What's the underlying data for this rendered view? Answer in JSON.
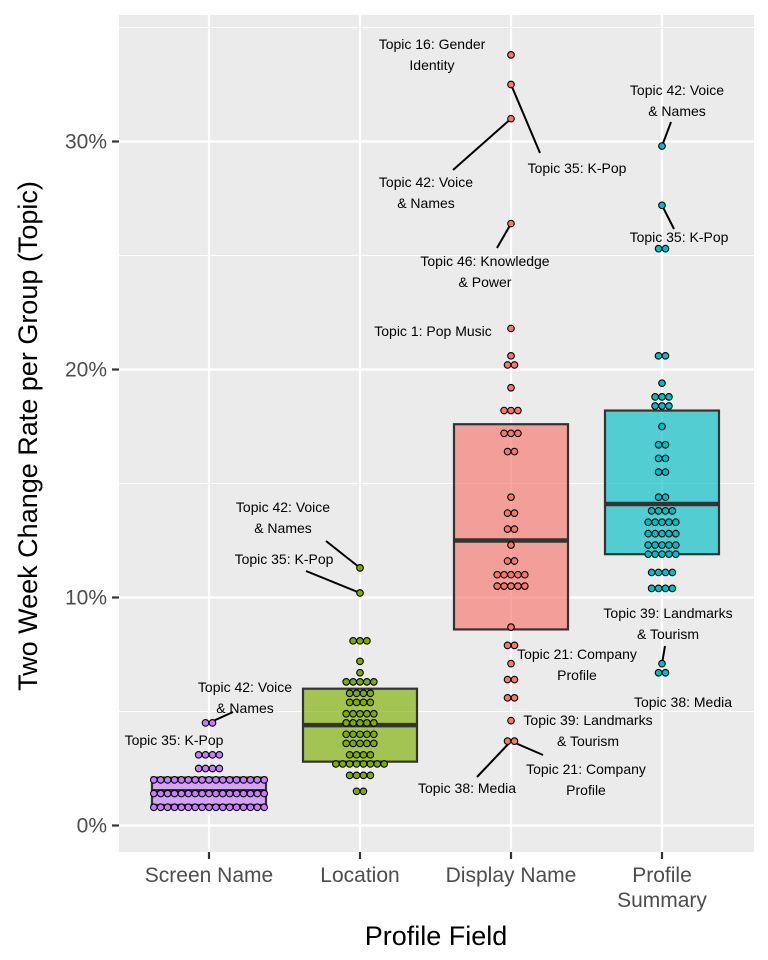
{
  "chart_data": {
    "type": "box",
    "title": "",
    "xlabel": "Profile Field",
    "ylabel": "Two Week Change Rate per Group (Topic)",
    "ylim": [
      -1,
      35.5
    ],
    "y_ticks": [
      0,
      10,
      20,
      30
    ],
    "y_tick_labels": [
      "0%",
      "10%",
      "20%",
      "30%"
    ],
    "grid": true,
    "legend": "none",
    "categories": [
      "Screen Name",
      "Location",
      "Display Name",
      "Profile Summary"
    ],
    "category_label_lines": [
      [
        "Screen Name"
      ],
      [
        "Location"
      ],
      [
        "Display Name"
      ],
      [
        "Profile",
        "Summary"
      ]
    ],
    "colors": [
      "#c77cff",
      "#7cae00",
      "#f8766d",
      "#00bfc4"
    ],
    "boxes": [
      {
        "q1": 0.9,
        "median": 1.5,
        "q3": 2.1
      },
      {
        "q1": 2.8,
        "median": 4.4,
        "q3": 6.0
      },
      {
        "q1": 8.6,
        "median": 12.5,
        "q3": 17.6
      },
      {
        "q1": 11.9,
        "median": 14.1,
        "q3": 18.2
      }
    ],
    "points": [
      [
        4.5,
        4.5,
        3.1,
        3.1,
        3.1,
        3.1,
        2.5,
        2.5,
        2.5,
        2.5,
        2.0,
        2.0,
        2.0,
        2.0,
        2.0,
        2.0,
        2.0,
        2.0,
        2.0,
        2.0,
        2.0,
        2.0,
        2.0,
        2.0,
        2.0,
        2.0,
        2.0,
        1.4,
        1.4,
        1.4,
        1.4,
        1.4,
        1.4,
        1.4,
        1.4,
        1.4,
        1.4,
        1.4,
        1.4,
        1.4,
        1.4,
        1.4,
        1.4,
        1.4,
        0.8,
        0.8,
        0.8,
        0.8,
        0.8,
        0.8,
        0.8,
        0.8,
        0.8,
        0.8,
        0.8,
        0.8,
        0.8,
        0.8,
        0.8,
        0.8,
        0.8
      ],
      [
        11.3,
        10.2,
        8.1,
        8.1,
        8.1,
        7.2,
        6.7,
        6.3,
        6.3,
        6.3,
        6.3,
        6.3,
        5.8,
        5.8,
        5.8,
        5.8,
        5.4,
        5.4,
        5.4,
        5.4,
        4.9,
        4.9,
        4.9,
        4.9,
        4.9,
        4.5,
        4.5,
        4.5,
        4.5,
        4.5,
        4.0,
        4.0,
        4.0,
        4.0,
        4.0,
        3.6,
        3.6,
        3.6,
        3.6,
        3.6,
        3.1,
        3.1,
        3.1,
        3.1,
        2.7,
        2.7,
        2.7,
        2.7,
        2.7,
        2.7,
        2.7,
        2.7,
        2.2,
        2.2,
        2.2,
        2.2,
        1.5,
        1.5
      ],
      [
        33.8,
        32.5,
        31.0,
        26.4,
        21.8,
        20.6,
        20.2,
        20.2,
        19.2,
        18.2,
        18.2,
        18.2,
        17.2,
        17.2,
        17.2,
        16.4,
        16.4,
        14.4,
        13.7,
        13.7,
        13.0,
        13.0,
        12.3,
        11.6,
        11.6,
        11.0,
        11.0,
        11.0,
        11.0,
        11.0,
        10.5,
        10.5,
        10.5,
        10.5,
        10.5,
        8.7,
        7.9,
        7.9,
        7.1,
        6.4,
        6.4,
        5.6,
        5.6,
        4.6,
        3.7,
        3.7
      ],
      [
        29.8,
        27.2,
        25.3,
        25.3,
        20.6,
        20.6,
        19.4,
        18.8,
        18.8,
        18.8,
        18.4,
        18.4,
        18.4,
        17.5,
        16.7,
        16.7,
        16.1,
        16.1,
        15.5,
        15.5,
        14.4,
        14.4,
        13.8,
        13.8,
        13.8,
        13.8,
        13.3,
        13.3,
        13.3,
        13.3,
        13.3,
        12.8,
        12.8,
        12.8,
        12.8,
        12.8,
        12.3,
        12.3,
        12.3,
        12.3,
        12.3,
        11.9,
        11.9,
        11.9,
        11.9,
        11.9,
        11.1,
        11.1,
        11.1,
        11.1,
        10.4,
        10.4,
        10.4,
        10.4,
        7.1,
        6.7,
        6.7
      ]
    ],
    "annotations": [
      {
        "group": 0,
        "point_y": 4.5,
        "lines": [
          "Topic 42: Voice",
          "& Names"
        ]
      },
      {
        "group": 0,
        "point_y": 3.1,
        "lines": [
          "Topic 35: K-Pop"
        ]
      },
      {
        "group": 1,
        "point_y": 11.3,
        "lines": [
          "Topic 42: Voice",
          "& Names"
        ]
      },
      {
        "group": 1,
        "point_y": 10.2,
        "lines": [
          "Topic 35: K-Pop"
        ]
      },
      {
        "group": 2,
        "point_y": 33.8,
        "lines": [
          "Topic 16: Gender",
          "Identity"
        ]
      },
      {
        "group": 2,
        "point_y": 32.5,
        "lines": [
          "Topic 35: K-Pop"
        ]
      },
      {
        "group": 2,
        "point_y": 31.0,
        "lines": [
          "Topic 42: Voice",
          "& Names"
        ]
      },
      {
        "group": 2,
        "point_y": 26.4,
        "lines": [
          "Topic 46: Knowledge",
          "& Power"
        ]
      },
      {
        "group": 2,
        "point_y": 21.8,
        "lines": [
          "Topic 1: Pop Music"
        ]
      },
      {
        "group": 2,
        "point_y": 7.9,
        "lines": [
          "Topic 21: Company",
          "Profile"
        ]
      },
      {
        "group": 2,
        "point_y": 4.6,
        "lines": [
          "Topic 39: Landmarks",
          "& Tourism"
        ]
      },
      {
        "group": 2,
        "point_y": 3.7,
        "lines": [
          "Topic 38: Media"
        ]
      },
      {
        "group": 2,
        "point_y": 3.7,
        "lines": [
          "Topic 21: Company",
          "Profile"
        ]
      },
      {
        "group": 3,
        "point_y": 29.8,
        "lines": [
          "Topic 42: Voice",
          "& Names"
        ]
      },
      {
        "group": 3,
        "point_y": 27.2,
        "lines": [
          "Topic 35: K-Pop"
        ]
      },
      {
        "group": 3,
        "point_y": 7.1,
        "lines": [
          "Topic 39: Landmarks",
          "& Tourism"
        ]
      },
      {
        "group": 3,
        "point_y": 6.7,
        "lines": [
          "Topic 38: Media"
        ]
      }
    ]
  }
}
